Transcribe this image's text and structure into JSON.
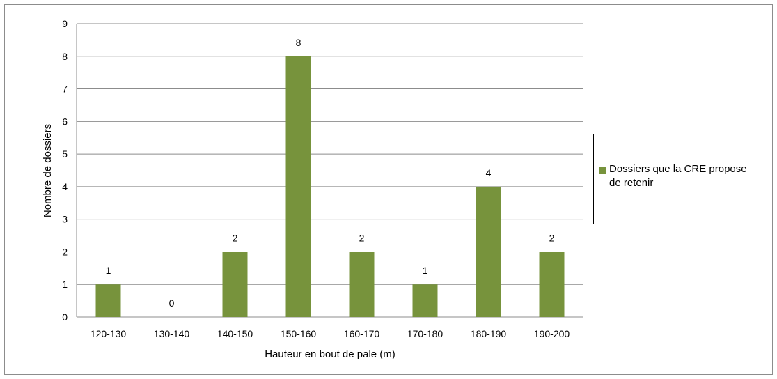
{
  "chart_data": {
    "type": "bar",
    "categories": [
      "120-130",
      "130-140",
      "140-150",
      "150-160",
      "160-170",
      "170-180",
      "180-190",
      "190-200"
    ],
    "series": [
      {
        "name": "Dossiers que la CRE propose de retenir",
        "values": [
          1,
          0,
          2,
          8,
          2,
          1,
          4,
          2
        ],
        "color": "#77933c"
      }
    ],
    "data_labels": [
      "1",
      "0",
      "2",
      "8",
      "2",
      "1",
      "4",
      "2"
    ],
    "xlabel": "Hauteur en bout de pale (m)",
    "ylabel": "Nombre de dossiers",
    "ylim": [
      0,
      9
    ],
    "yticks": [
      "0",
      "1",
      "2",
      "3",
      "4",
      "5",
      "6",
      "7",
      "8",
      "9"
    ],
    "grid": true,
    "legend_position": "right"
  }
}
